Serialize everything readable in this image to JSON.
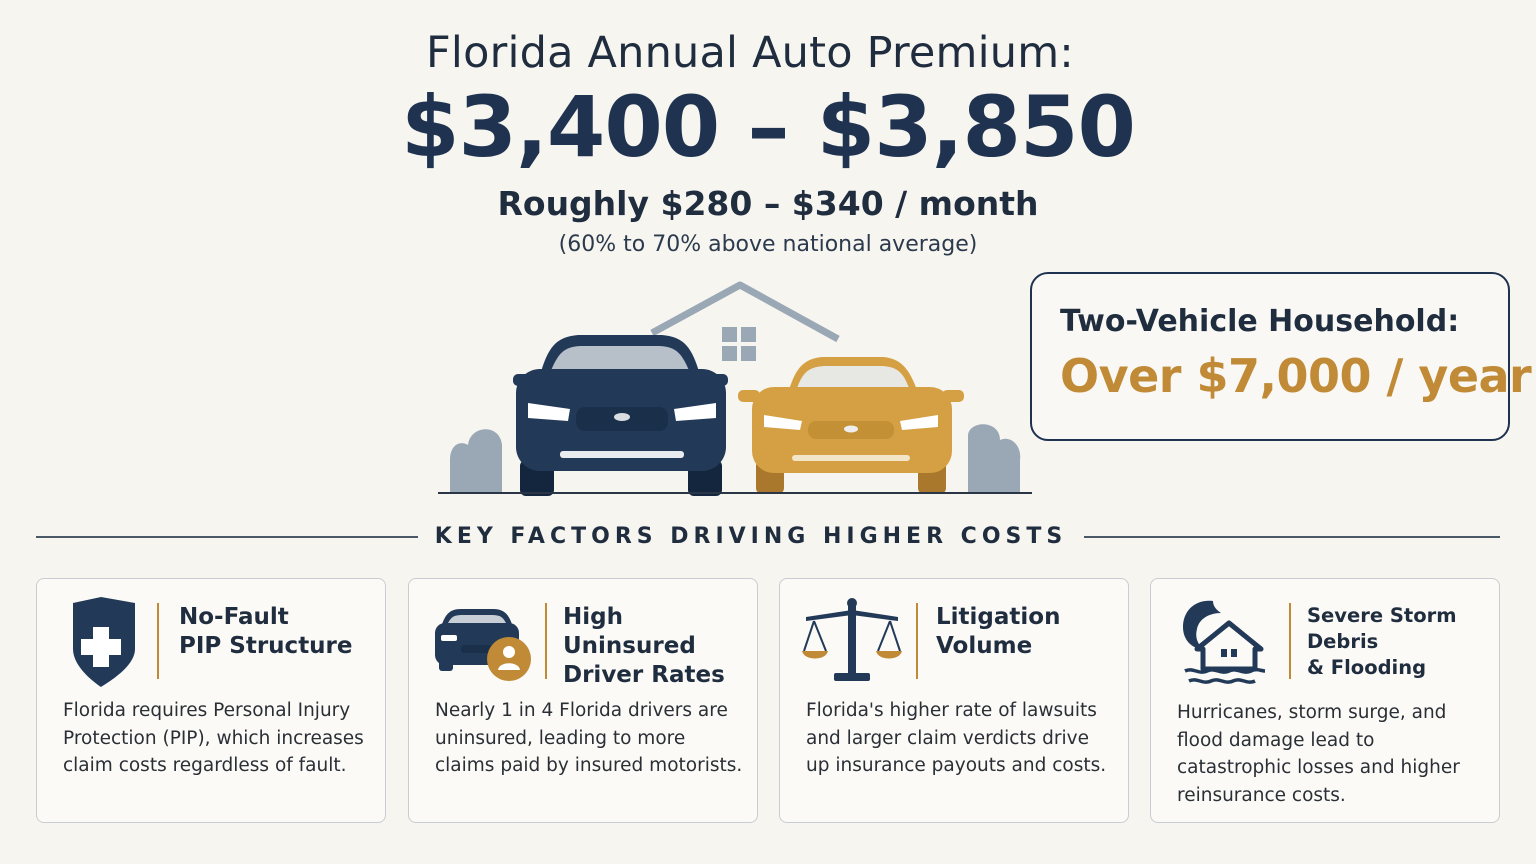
{
  "header": {
    "title": "Florida Annual Auto Premium:",
    "price_range": "$3,400 – $3,850",
    "monthly": "Roughly $280 – $340 / month",
    "comparison": "(60% to 70% above national average)"
  },
  "callout": {
    "title": "Two-Vehicle Household:",
    "value": "Over $7,000 / year"
  },
  "section": {
    "heading": "KEY FACTORS DRIVING HIGHER COSTS"
  },
  "factors": [
    {
      "title": "No-Fault\nPIP Structure",
      "icon": "shield-cross-icon",
      "body": "Florida requires Personal Injury Protection (PIP), which increases claim costs regardless of fault."
    },
    {
      "title": "High Uninsured\nDriver Rates",
      "icon": "car-person-icon",
      "body": "Nearly 1 in 4 Florida drivers are uninsured, leading to more claims paid by insured motorists."
    },
    {
      "title": "Litigation\nVolume",
      "icon": "scales-icon",
      "body": "Florida's higher rate of lawsuits and larger claim verdicts drive up insurance payouts and costs."
    },
    {
      "title": "Severe Storm Debris\n& Flooding",
      "icon": "hurricane-house-icon",
      "body": "Hurricanes, storm surge, and flood damage lead to catastrophic losses and higher reinsurance costs."
    }
  ],
  "colors": {
    "navy": "#1f3350",
    "gold": "#c08a36",
    "background": "#f7f5f0",
    "gray": "#9aa8b6"
  }
}
